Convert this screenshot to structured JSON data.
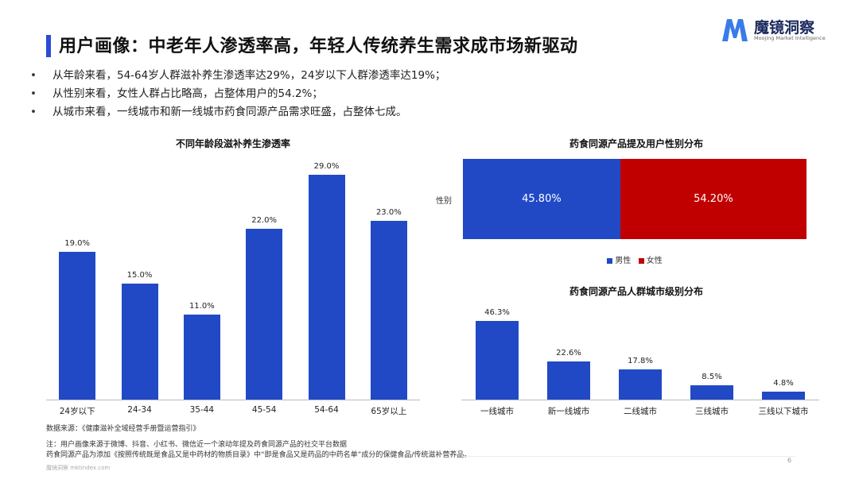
{
  "header": {
    "title": "用户画像：中老年人渗透率高，年轻人传统养生需求成市场新驱动",
    "logo_name": "魔镜洞察",
    "logo_sub": "Moojing Market Intelligence"
  },
  "bullets": [
    "从年龄来看，54-64岁人群滋补养生渗透率达29%，24岁以下人群渗透率达19%；",
    "从性别来看，女性人群占比略高，占整体用户的54.2%；",
    "从城市来看，一线城市和新一线城市药食同源产品需求旺盛，占整体七成。"
  ],
  "colors": {
    "accent": "#2149C6",
    "female": "#C00000",
    "male": "#2149C6"
  },
  "chart_data": [
    {
      "type": "bar",
      "title": "不同年龄段滋补养生渗透率",
      "categories": [
        "24岁以下",
        "24-34",
        "35-44",
        "45-54",
        "54-64",
        "65岁以上"
      ],
      "values": [
        19.0,
        15.0,
        11.0,
        22.0,
        29.0,
        23.0
      ],
      "labels": [
        "19.0%",
        "15.0%",
        "11.0%",
        "22.0%",
        "29.0%",
        "23.0%"
      ],
      "unit": "%",
      "ylim": [
        0,
        30
      ],
      "grid": false
    },
    {
      "type": "bar",
      "orientation": "horizontal-stacked",
      "title": "药食同源产品提及用户性别分布",
      "categories": [
        "性别"
      ],
      "series": [
        {
          "name": "男性",
          "values": [
            45.8
          ],
          "label": "45.80%",
          "color": "#2149C6"
        },
        {
          "name": "女性",
          "values": [
            54.2
          ],
          "label": "54.20%",
          "color": "#C00000"
        }
      ],
      "xlim": [
        0,
        100
      ],
      "legend": "bottom"
    },
    {
      "type": "bar",
      "title": "药食同源产品人群城市级别分布",
      "categories": [
        "一线城市",
        "新一线城市",
        "二线城市",
        "三线城市",
        "三线以下城市"
      ],
      "values": [
        46.3,
        22.6,
        17.8,
        8.5,
        4.8
      ],
      "labels": [
        "46.3%",
        "22.6%",
        "17.8%",
        "8.5%",
        "4.8%"
      ],
      "unit": "%",
      "ylim": [
        0,
        50
      ],
      "grid": false
    }
  ],
  "notes": {
    "source": "数据来源：《健康滋补全域经营手册暨运营指引》",
    "note1": "注：用户画像来源于微博、抖音、小红书、微信近一个滚动年提及药食同源产品的社交平台数据",
    "note2": "药食同源产品为添加《按照传统既是食品又是中药材的物质目录》中“即是食品又是药品的中药名单”成分的保健食品/传统滋补营养品。"
  },
  "footer": {
    "source": "魔镜洞察 mktindex.com",
    "page": "6"
  }
}
